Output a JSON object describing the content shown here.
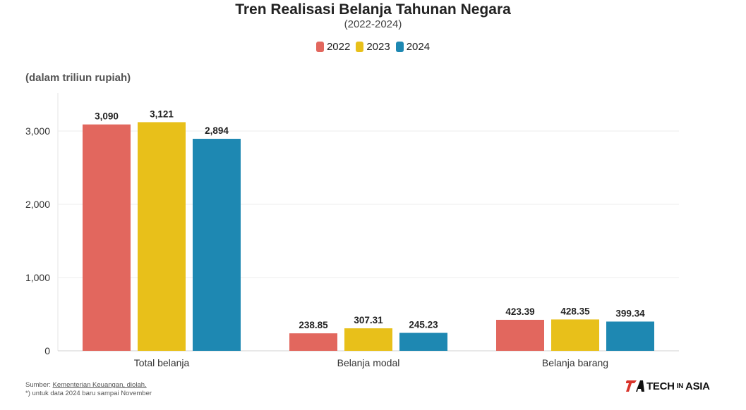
{
  "title": "Tren Realisasi Belanja Tahunan Negara",
  "subtitle": "(2022-2024)",
  "unit_label": "(dalam triliun rupiah)",
  "source": {
    "prefix": "Sumber: ",
    "link_text": "Kementerian Keuangan, diolah.",
    "note": "*) untuk data 2024 baru sampai November"
  },
  "logo": {
    "icon": "techinasia-logo-icon",
    "part1": "TECH",
    "part2": "IN",
    "part3": "ASIA"
  },
  "chart_data": {
    "type": "bar",
    "categories": [
      "Total belanja",
      "Belanja modal",
      "Belanja barang"
    ],
    "series": [
      {
        "name": "2022",
        "color": "#e2675e",
        "values": [
          3090,
          238.85,
          423.39
        ],
        "labels": [
          "3,090",
          "238.85",
          "423.39"
        ]
      },
      {
        "name": "2023",
        "color": "#e8c01a",
        "values": [
          3121,
          307.31,
          428.35
        ],
        "labels": [
          "3,121",
          "307.31",
          "428.35"
        ]
      },
      {
        "name": "2024",
        "color": "#1e88b2",
        "values": [
          2894,
          245.23,
          399.34
        ],
        "labels": [
          "2,894",
          "245.23",
          "399.34"
        ]
      }
    ],
    "y_ticks": [
      0,
      1000,
      2000,
      3000
    ],
    "y_tick_labels": [
      "0",
      "1,000",
      "2,000",
      "3,000"
    ],
    "ylim": [
      0,
      3500
    ],
    "grid": true,
    "legend_position": "top-center"
  }
}
